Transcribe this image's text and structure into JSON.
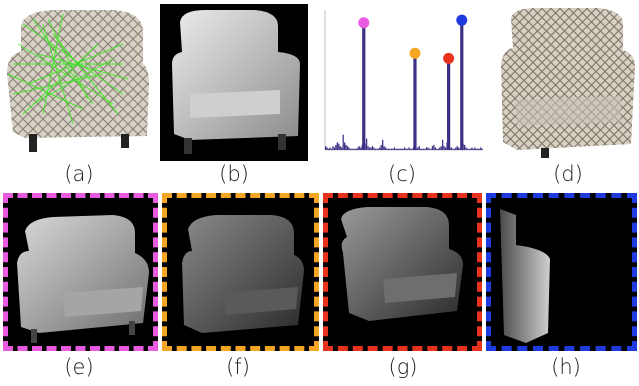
{
  "figure": {
    "captions": [
      "(a)",
      "(b)",
      "(c)",
      "(d)",
      "(e)",
      "(f)",
      "(g)",
      "(h)"
    ],
    "panels": {
      "a": {
        "description_icon": "armchair-patterned-with-green-lines-icon"
      },
      "b": {
        "description_icon": "armchair-gray-render-icon"
      },
      "d": {
        "description_icon": "armchair-patterned-photo-icon"
      },
      "e": {
        "description_icon": "armchair-render-front-icon",
        "frame_color": "#e85be0"
      },
      "f": {
        "description_icon": "armchair-render-dark-icon",
        "frame_color": "#f5a623"
      },
      "g": {
        "description_icon": "armchair-render-side-icon",
        "frame_color": "#e8321e"
      },
      "h": {
        "description_icon": "armchair-render-edge-icon",
        "frame_color": "#1f3be0"
      }
    }
  },
  "chart_data": {
    "type": "bar",
    "bars": [
      3,
      2,
      1,
      2,
      1,
      3,
      2,
      4,
      6,
      5,
      3,
      2,
      12,
      6,
      4,
      3,
      2,
      1,
      1,
      1,
      1,
      1,
      2,
      3,
      2,
      4,
      6,
      5,
      9,
      3,
      2,
      2,
      3,
      2,
      1,
      1,
      1,
      2,
      4,
      8,
      3,
      2,
      1,
      1,
      1,
      1,
      1,
      2,
      1,
      1,
      1,
      1,
      1,
      1,
      2,
      1,
      1,
      2,
      1,
      1,
      2,
      3,
      1,
      2,
      3,
      1,
      1,
      1,
      1,
      2,
      2,
      1,
      1,
      3,
      4,
      2,
      1,
      1,
      2,
      3,
      8,
      3,
      2,
      6,
      10,
      2,
      2,
      1,
      1,
      2,
      3,
      2,
      1,
      2,
      5,
      4,
      2,
      1,
      1,
      1,
      2,
      1,
      2,
      1,
      1,
      1,
      2,
      1
    ],
    "peaks": [
      {
        "index": 26,
        "value": 100,
        "color": "#e85be0"
      },
      {
        "index": 61,
        "value": 76,
        "color": "#f5a623"
      },
      {
        "index": 84,
        "value": 72,
        "color": "#e8321e"
      },
      {
        "index": 93,
        "value": 102,
        "color": "#1f3be0"
      }
    ],
    "bar_color": "#3b2f86",
    "ylim": [
      0,
      110
    ]
  }
}
